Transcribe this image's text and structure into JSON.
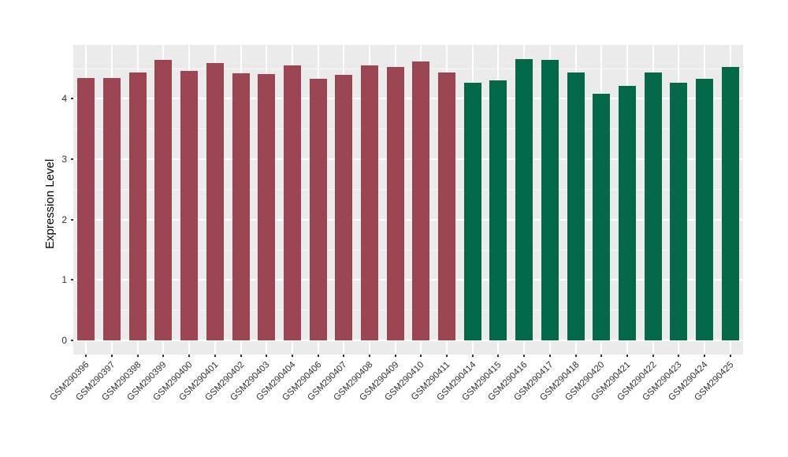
{
  "chart_data": {
    "type": "bar",
    "title": "",
    "xlabel": "",
    "ylabel": "Expression Level",
    "ylim": [
      0,
      4.9
    ],
    "y_ticks": [
      0,
      1,
      2,
      3,
      4
    ],
    "y_minor_ticks": [
      0.5,
      1.5,
      2.5,
      3.5,
      4.5
    ],
    "grid": true,
    "legend_position": "none",
    "x_tick_rotation_deg": 45,
    "panel_background_color": "#EBEBEB",
    "gridline_color": "#FFFFFF",
    "group_colors": {
      "left_group": "#9B4652",
      "right_group": "#036948"
    },
    "categories": [
      "GSM290396",
      "GSM290397",
      "GSM290398",
      "GSM290399",
      "GSM290400",
      "GSM290401",
      "GSM290402",
      "GSM290403",
      "GSM290404",
      "GSM290406",
      "GSM290407",
      "GSM290408",
      "GSM290409",
      "GSM290410",
      "GSM290411",
      "GSM290414",
      "GSM290415",
      "GSM290416",
      "GSM290417",
      "GSM290418",
      "GSM290420",
      "GSM290421",
      "GSM290422",
      "GSM290423",
      "GSM290424",
      "GSM290425"
    ],
    "values": [
      4.35,
      4.34,
      4.43,
      4.65,
      4.46,
      4.59,
      4.42,
      4.41,
      4.56,
      4.33,
      4.4,
      4.55,
      4.53,
      4.62,
      4.44,
      4.27,
      4.3,
      4.66,
      4.64,
      4.43,
      4.09,
      4.21,
      4.44,
      4.27,
      4.33,
      4.53
    ],
    "colors": [
      "#9B4652",
      "#9B4652",
      "#9B4652",
      "#9B4652",
      "#9B4652",
      "#9B4652",
      "#9B4652",
      "#9B4652",
      "#9B4652",
      "#9B4652",
      "#9B4652",
      "#9B4652",
      "#9B4652",
      "#9B4652",
      "#9B4652",
      "#036948",
      "#036948",
      "#036948",
      "#036948",
      "#036948",
      "#036948",
      "#036948",
      "#036948",
      "#036948",
      "#036948",
      "#036948"
    ]
  }
}
